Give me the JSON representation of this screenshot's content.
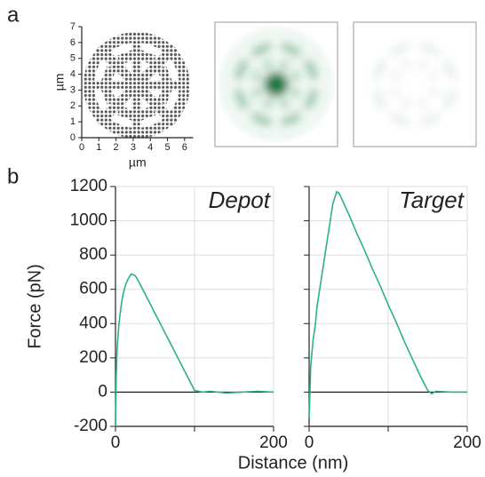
{
  "panel_labels": [
    "a",
    "b"
  ],
  "shared_axes": {
    "xlabel": "Distance (nm)",
    "ylabel": "Force (pN)"
  },
  "chart_data": [
    {
      "type": "pattern",
      "xlabel": "µm",
      "ylabel": "µm",
      "xlim": [
        0,
        6.5
      ],
      "xticks": [
        0,
        1,
        2,
        3,
        4,
        5,
        6
      ],
      "ylim": [
        0,
        7
      ],
      "yticks": [
        0,
        1,
        2,
        3,
        4,
        5,
        6,
        7
      ]
    },
    {
      "type": "line",
      "title": "Depot",
      "color": "#2db37a",
      "grid": true,
      "x": [
        0,
        1,
        2,
        4,
        6,
        8,
        10,
        13,
        16,
        20,
        25,
        30,
        40,
        50,
        60,
        70,
        80,
        90,
        100,
        110,
        120,
        140,
        160,
        180,
        200
      ],
      "values": [
        -200,
        100,
        250,
        380,
        460,
        530,
        580,
        630,
        660,
        690,
        680,
        640,
        550,
        460,
        370,
        280,
        190,
        100,
        10,
        0,
        5,
        -5,
        0,
        5,
        0
      ],
      "xlim": [
        0,
        200
      ],
      "xticks": [
        0,
        {
          "value": 100,
          "label": null
        },
        200
      ],
      "ylim": [
        -200,
        1200
      ],
      "yticks": [
        -200,
        0,
        200,
        400,
        600,
        800,
        1000,
        1200
      ]
    },
    {
      "type": "line",
      "title": "Target",
      "color": "#2db37a",
      "grid": true,
      "x": [
        0,
        2,
        5,
        8,
        10,
        15,
        20,
        25,
        30,
        35,
        38,
        40,
        50,
        60,
        70,
        80,
        90,
        100,
        110,
        120,
        130,
        140,
        150,
        155,
        160,
        180,
        200
      ],
      "values": [
        -150,
        150,
        300,
        400,
        500,
        650,
        800,
        950,
        1100,
        1170,
        1160,
        1140,
        1040,
        930,
        830,
        720,
        620,
        510,
        410,
        300,
        200,
        100,
        10,
        -10,
        5,
        0,
        0
      ],
      "xlim": [
        0,
        200
      ],
      "xticks": [
        0,
        {
          "value": 100,
          "label": null
        },
        200
      ],
      "ylim": [
        -200,
        1200
      ],
      "yticks": [
        -200,
        0,
        200,
        400,
        600,
        800,
        1000,
        1200
      ]
    }
  ]
}
